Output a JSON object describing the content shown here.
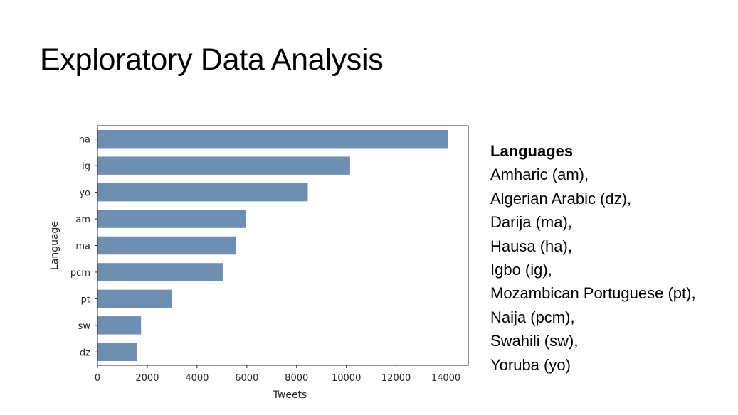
{
  "slide": {
    "title": "Exploratory Data Analysis"
  },
  "languages_panel": {
    "heading": "Languages",
    "items": [
      "Amharic (am),",
      "Algerian Arabic (dz),",
      "Darija (ma),",
      "Hausa (ha),",
      "Igbo (ig),",
      "Mozambican Portuguese (pt),",
      "Naija (pcm),",
      "Swahili (sw),",
      "Yoruba (yo)"
    ]
  },
  "chart_data": {
    "type": "bar",
    "orientation": "horizontal",
    "categories": [
      "ha",
      "ig",
      "yo",
      "am",
      "ma",
      "pcm",
      "pt",
      "sw",
      "dz"
    ],
    "values": [
      14100,
      10150,
      8450,
      5950,
      5550,
      5050,
      3000,
      1750,
      1600
    ],
    "xlabel": "Tweets",
    "ylabel": "Language",
    "xlim": [
      0,
      14900
    ],
    "xticks": [
      0,
      2000,
      4000,
      6000,
      8000,
      10000,
      12000,
      14000
    ],
    "bar_color": "#6e8fb1",
    "grid": false
  }
}
